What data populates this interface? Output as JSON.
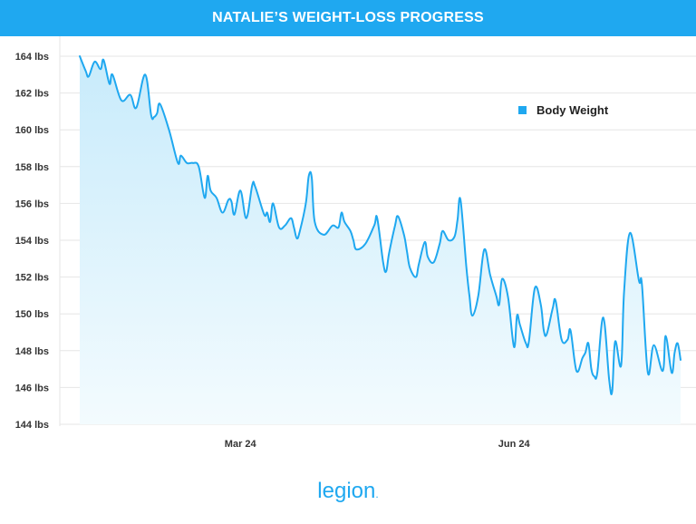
{
  "header": {
    "title": "NATALIE’S WEIGHT-LOSS PROGRESS"
  },
  "brand": {
    "name": "legion",
    "mark": "."
  },
  "colors": {
    "accent": "#1fa8f0",
    "grid": "#e6e6e6"
  },
  "chart_data": {
    "type": "area",
    "title": "NATALIE’S WEIGHT-LOSS PROGRESS",
    "xlabel": "",
    "ylabel": "",
    "x_unit": "days",
    "x_range": [
      "2024-01-07",
      "2024-07-27"
    ],
    "x_ticks": [
      {
        "label": "Mar 24",
        "date": "2024-03-01"
      },
      {
        "label": "Jun 24",
        "date": "2024-06-01"
      }
    ],
    "ylim": [
      144,
      165
    ],
    "y_ticks": [
      {
        "value": 144,
        "label": "144 lbs"
      },
      {
        "value": 146,
        "label": "146 lbs"
      },
      {
        "value": 148,
        "label": "148 lbs"
      },
      {
        "value": 150,
        "label": "150 lbs"
      },
      {
        "value": 152,
        "label": "152 lbs"
      },
      {
        "value": 154,
        "label": "154 lbs"
      },
      {
        "value": 156,
        "label": "156 lbs"
      },
      {
        "value": 158,
        "label": "158 lbs"
      },
      {
        "value": 160,
        "label": "160 lbs"
      },
      {
        "value": 162,
        "label": "162 lbs"
      },
      {
        "value": 164,
        "label": "164 lbs"
      }
    ],
    "grid": true,
    "legend_position": "top-right",
    "series": [
      {
        "name": "Body Weight",
        "color": "#1fa8f0",
        "x": [
          "2024-01-07",
          "2024-01-09",
          "2024-01-10",
          "2024-01-12",
          "2024-01-14",
          "2024-01-15",
          "2024-01-17",
          "2024-01-18",
          "2024-01-21",
          "2024-01-24",
          "2024-01-26",
          "2024-01-29",
          "2024-01-31",
          "2024-02-01",
          "2024-02-02",
          "2024-02-03",
          "2024-02-06",
          "2024-02-09",
          "2024-02-10",
          "2024-02-12",
          "2024-02-14",
          "2024-02-16",
          "2024-02-18",
          "2024-02-19",
          "2024-02-20",
          "2024-02-22",
          "2024-02-24",
          "2024-02-26",
          "2024-02-27",
          "2024-02-28",
          "2024-03-01",
          "2024-03-03",
          "2024-03-05",
          "2024-03-06",
          "2024-03-09",
          "2024-03-10",
          "2024-03-11",
          "2024-03-12",
          "2024-03-14",
          "2024-03-16",
          "2024-03-18",
          "2024-03-19",
          "2024-03-20",
          "2024-03-21",
          "2024-03-23",
          "2024-03-24",
          "2024-03-25",
          "2024-03-26",
          "2024-03-29",
          "2024-04-01",
          "2024-04-03",
          "2024-04-04",
          "2024-04-05",
          "2024-04-07",
          "2024-04-08",
          "2024-04-09",
          "2024-04-12",
          "2024-04-15",
          "2024-04-16",
          "2024-04-18",
          "2024-04-19",
          "2024-04-20",
          "2024-04-22",
          "2024-04-23",
          "2024-04-25",
          "2024-04-26",
          "2024-04-27",
          "2024-04-29",
          "2024-04-30",
          "2024-05-02",
          "2024-05-03",
          "2024-05-05",
          "2024-05-07",
          "2024-05-08",
          "2024-05-10",
          "2024-05-12",
          "2024-05-13",
          "2024-05-14",
          "2024-05-16",
          "2024-05-17",
          "2024-05-18",
          "2024-05-20",
          "2024-05-22",
          "2024-05-24",
          "2024-05-26",
          "2024-05-27",
          "2024-05-28",
          "2024-05-30",
          "2024-06-01",
          "2024-06-02",
          "2024-06-03",
          "2024-06-05",
          "2024-06-06",
          "2024-06-08",
          "2024-06-10",
          "2024-06-11",
          "2024-06-12",
          "2024-06-14",
          "2024-06-15",
          "2024-06-17",
          "2024-06-19",
          "2024-06-20",
          "2024-06-22",
          "2024-06-24",
          "2024-06-25",
          "2024-06-26",
          "2024-06-27",
          "2024-06-28",
          "2024-06-29",
          "2024-07-01",
          "2024-07-03",
          "2024-07-04",
          "2024-07-05",
          "2024-07-07",
          "2024-07-08",
          "2024-07-10",
          "2024-07-13",
          "2024-07-14",
          "2024-07-16",
          "2024-07-18",
          "2024-07-21",
          "2024-07-22",
          "2024-07-24",
          "2024-07-25",
          "2024-07-26",
          "2024-07-27"
        ],
        "values": [
          164.0,
          163.2,
          162.9,
          163.7,
          163.3,
          163.8,
          162.5,
          163.0,
          161.6,
          161.9,
          161.2,
          163.0,
          160.8,
          160.7,
          160.9,
          161.4,
          160.0,
          158.2,
          158.6,
          158.2,
          158.2,
          158.0,
          156.3,
          157.5,
          156.7,
          156.3,
          155.5,
          156.2,
          156.1,
          155.4,
          156.7,
          155.2,
          157.0,
          156.9,
          155.4,
          155.5,
          155.0,
          156.0,
          154.7,
          154.8,
          155.2,
          154.7,
          154.1,
          154.5,
          156.0,
          157.5,
          157.4,
          155.0,
          154.3,
          154.8,
          154.7,
          155.5,
          155.0,
          154.5,
          154.0,
          153.5,
          153.8,
          154.8,
          155.2,
          152.8,
          152.3,
          153.3,
          154.8,
          155.3,
          154.3,
          153.4,
          152.5,
          152.0,
          152.7,
          153.9,
          153.1,
          152.8,
          153.8,
          154.5,
          154.0,
          154.2,
          155.1,
          156.2,
          152.5,
          151.0,
          149.9,
          151.0,
          153.5,
          152.1,
          151.0,
          150.5,
          151.9,
          150.9,
          148.2,
          149.9,
          149.4,
          148.4,
          148.5,
          151.4,
          150.5,
          149.1,
          148.9,
          150.3,
          150.7,
          148.6,
          148.6,
          149.1,
          146.9,
          147.6,
          147.9,
          148.4,
          147.0,
          146.6,
          146.8,
          149.8,
          146.4,
          145.8,
          148.5,
          147.2,
          151.2,
          154.4,
          151.8,
          151.6,
          146.8,
          148.3,
          146.9,
          148.8,
          146.8,
          147.9,
          148.4,
          147.5
        ]
      }
    ]
  }
}
